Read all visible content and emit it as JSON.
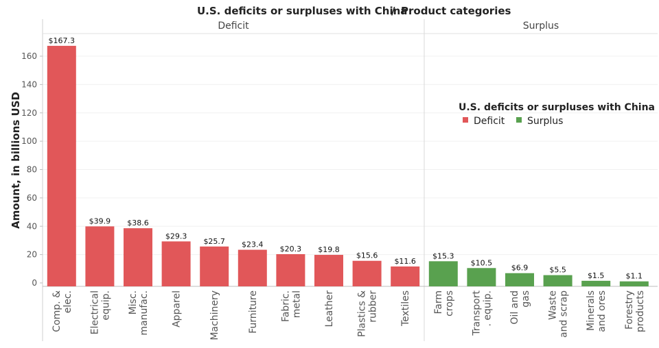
{
  "chart_data": {
    "type": "bar",
    "title": "U.S. deficits or surpluses with China",
    "title_separator": "/",
    "title_dimension": "Product categories",
    "ylabel": "Amount, in billions USD",
    "ylim": [
      0,
      170
    ],
    "yticks": [
      0,
      20,
      40,
      60,
      80,
      100,
      120,
      140,
      160
    ],
    "grid": true,
    "legend": {
      "title": "U.S. deficits or surpluses with China",
      "position": "right",
      "entries": [
        {
          "name": "Deficit",
          "color": "#e15759"
        },
        {
          "name": "Surplus",
          "color": "#59a14f"
        }
      ]
    },
    "panels": [
      {
        "name": "Deficit",
        "color": "#e15759",
        "categories": [
          [
            "Comp. &",
            "elec."
          ],
          [
            "Electrical",
            "equip."
          ],
          [
            "Misc.",
            "manufac."
          ],
          [
            "Apparel"
          ],
          [
            "Machinery"
          ],
          [
            "Furniture"
          ],
          [
            "Fabric.",
            "metal"
          ],
          [
            "Leather"
          ],
          [
            "Plastics &",
            "rubber"
          ],
          [
            "Textiles"
          ]
        ],
        "values": [
          167.3,
          39.9,
          38.6,
          29.3,
          25.7,
          23.4,
          20.3,
          19.8,
          15.6,
          11.6
        ],
        "labels": [
          "$167.3",
          "$39.9",
          "$38.6",
          "$29.3",
          "$25.7",
          "$23.4",
          "$20.3",
          "$19.8",
          "$15.6",
          "$11.6"
        ]
      },
      {
        "name": "Surplus",
        "color": "#59a14f",
        "categories": [
          [
            "Farm",
            "crops"
          ],
          [
            "Transport",
            ". equip."
          ],
          [
            "Oil and",
            "gas"
          ],
          [
            "Waste",
            "and scrap"
          ],
          [
            "Minerals",
            "and ores"
          ],
          [
            "Forestry",
            "products"
          ]
        ],
        "values": [
          15.3,
          10.5,
          6.9,
          5.5,
          1.5,
          1.1
        ],
        "labels": [
          "$15.3",
          "$10.5",
          "$6.9",
          "$5.5",
          "$1.5",
          "$1.1"
        ]
      }
    ]
  }
}
